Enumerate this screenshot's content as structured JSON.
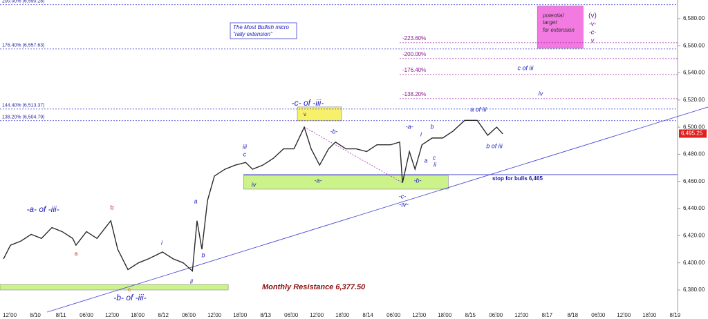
{
  "chart_data": {
    "type": "line",
    "color": "#2a2a2a",
    "x": [
      -0.24,
      0.03,
      0.43,
      0.84,
      1.24,
      1.65,
      2.05,
      2.46,
      2.59,
      3.0,
      3.41,
      3.95,
      4.22,
      4.62,
      5.03,
      5.43,
      5.97,
      6.38,
      6.78,
      7.14,
      7.32,
      7.51,
      7.73,
      8.0,
      8.41,
      8.81,
      9.22,
      9.49,
      9.89,
      10.3,
      10.7,
      11.11,
      11.51,
      11.78,
      12.11,
      12.46,
      12.73,
      13.14,
      13.54,
      13.95,
      14.35,
      14.89,
      15.24,
      15.35,
      15.62,
      15.84,
      16.11,
      16.51,
      16.92,
      17.32,
      17.78,
      18.27,
      18.68,
      19.03,
      19.27
    ],
    "values": [
      6403,
      6413,
      6416,
      6421,
      6418,
      6426,
      6423,
      6418,
      6413,
      6423,
      6418,
      6431,
      6410,
      6395,
      6400,
      6403,
      6408,
      6403,
      6400,
      6394,
      6431,
      6410,
      6446,
      6464,
      6469,
      6472,
      6474,
      6469,
      6472,
      6477,
      6484,
      6484,
      6500,
      6484,
      6472,
      6484,
      6489,
      6484,
      6484,
      6482,
      6487,
      6487,
      6489,
      6459,
      6482,
      6469,
      6487,
      6492,
      6492,
      6497,
      6505,
      6505,
      6494,
      6500,
      6495
    ],
    "xlim": [
      -0.38,
      26.1
    ],
    "ylim": [
      6363.7,
      6593.7
    ],
    "xticks": [
      {
        "value": 0,
        "label": "12:00"
      },
      {
        "value": 1,
        "label": "8/10"
      },
      {
        "value": 2,
        "label": "8/11"
      },
      {
        "value": 3,
        "label": "06:00"
      },
      {
        "value": 4,
        "label": "12:00"
      },
      {
        "value": 5,
        "label": "18:00"
      },
      {
        "value": 6,
        "label": "8/12"
      },
      {
        "value": 7,
        "label": "06:00"
      },
      {
        "value": 8,
        "label": "12:00"
      },
      {
        "value": 9,
        "label": "18:00"
      },
      {
        "value": 10,
        "label": "8/13"
      },
      {
        "value": 11,
        "label": "06:00"
      },
      {
        "value": 12,
        "label": "12:00"
      },
      {
        "value": 13,
        "label": "18:00"
      },
      {
        "value": 14,
        "label": "8/14"
      },
      {
        "value": 15,
        "label": "06:00"
      },
      {
        "value": 16,
        "label": "12:00"
      },
      {
        "value": 17,
        "label": "18:00"
      },
      {
        "value": 18,
        "label": "8/15"
      },
      {
        "value": 19,
        "label": "06:00"
      },
      {
        "value": 20,
        "label": "12:00"
      },
      {
        "value": 21,
        "label": "8/17"
      },
      {
        "value": 22,
        "label": "8/18"
      },
      {
        "value": 23,
        "label": "06:00"
      },
      {
        "value": 24,
        "label": "12:00"
      },
      {
        "value": 25,
        "label": "18:00"
      },
      {
        "value": 26,
        "label": "8/19"
      }
    ],
    "yticks": [
      {
        "value": 6380,
        "label": "6,380.00"
      },
      {
        "value": 6400,
        "label": "6,400.00"
      },
      {
        "value": 6420,
        "label": "6,420.00"
      },
      {
        "value": 6440,
        "label": "6,440.00"
      },
      {
        "value": 6460,
        "label": "6,460.00"
      },
      {
        "value": 6480,
        "label": "6,480.00"
      },
      {
        "value": 6500,
        "label": "6,500.00"
      },
      {
        "value": 6520,
        "label": "6,520.00"
      },
      {
        "value": 6540,
        "label": "6,540.00"
      },
      {
        "value": 6560,
        "label": "6,560.00"
      },
      {
        "value": 6580,
        "label": "6,580.00"
      }
    ],
    "last_price": {
      "value": 6495.25,
      "label": "6,495.25"
    },
    "fib_levels": [
      {
        "label": "200.00% (6,590.28)",
        "value": 6590.28
      },
      {
        "label": "176.40% (6,557.63)",
        "value": 6557.63
      },
      {
        "label": "144.40% (6,513.37)",
        "value": 6513.37
      },
      {
        "label": "138.20% (6,504.79)",
        "value": 6504.79
      }
    ],
    "extension_levels": [
      {
        "label": "-223.60%",
        "value": 6562.2
      },
      {
        "label": "-200.00%",
        "value": 6550.5
      },
      {
        "label": "-176.40%",
        "value": 6538.8
      },
      {
        "label": "-138.20%",
        "value": 6521
      }
    ],
    "stop_level": {
      "label": "stop for bulls 6,465",
      "value": 6465
    },
    "trendline": {
      "x": [
        1.46,
        27.3
      ],
      "values": [
        6363.7,
        6514.9
      ]
    },
    "connector": {
      "x": [
        11.51,
        15.35
      ],
      "values": [
        6500,
        6459
      ]
    },
    "zones": [
      {
        "x": [
          -0.38,
          8.54
        ],
        "y": [
          6380,
          6384.1
        ],
        "color": "#ccf28a"
      },
      {
        "x": [
          9.14,
          17.14
        ],
        "y": [
          6454.3,
          6464.5
        ],
        "color": "#ccf28a"
      },
      {
        "x": [
          11.24,
          12.97
        ],
        "y": [
          6504.7,
          6514.9
        ],
        "color": "#f7f06a"
      },
      {
        "x": [
          20.62,
          22.41
        ],
        "y": [
          6558.1,
          6589.2
        ],
        "color": "#f27ae0"
      }
    ],
    "annotations": [
      "-a- of -iii-",
      "b",
      "a",
      "c",
      "-b- of -iii-",
      "i",
      "a",
      "b",
      "ii",
      "iii",
      "c",
      "iv",
      "-c- of -iii-",
      "v",
      "-a-",
      "-b-",
      "-a-",
      "-b-",
      "-c-",
      "-iv-",
      "i",
      "b",
      "a",
      "c",
      "ii",
      "a of iii",
      "b of iii",
      "c of iii",
      "iv",
      "Monthly Resistance 6,377.50",
      "The Most Bullish micro",
      "\"rally extension\"",
      "potential",
      "target",
      "for extension",
      "(v)",
      "-v-",
      "-c-",
      "v"
    ]
  }
}
